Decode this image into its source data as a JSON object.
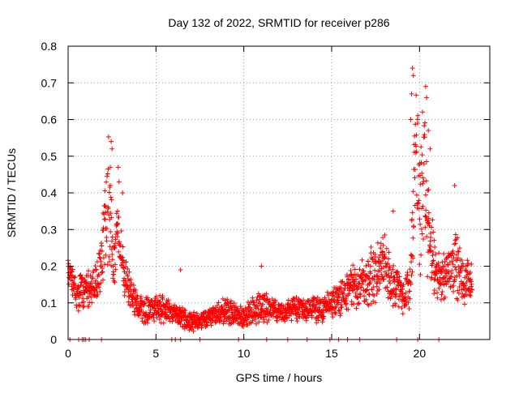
{
  "chart_data": {
    "type": "scatter",
    "title": "Day 132 of 2022, SRMTID for receiver p286",
    "xlabel": "GPS time / hours",
    "ylabel": "SRMTID / TECUs",
    "xlim": [
      0,
      24
    ],
    "ylim": [
      0,
      0.8
    ],
    "x_ticks": [
      0,
      5,
      10,
      15,
      20
    ],
    "x_tick_labels": [
      "0",
      "5",
      "10",
      "15",
      "20"
    ],
    "y_ticks": [
      0,
      0.1,
      0.2,
      0.3,
      0.4,
      0.5,
      0.6,
      0.7,
      0.8
    ],
    "y_tick_labels": [
      "0",
      "0.1",
      "0.2",
      "0.3",
      "0.4",
      "0.5",
      "0.6",
      "0.7",
      "0.8"
    ],
    "grid": true,
    "marker": "plus",
    "marker_color": "#ff0000",
    "envelope": {
      "x": [
        0,
        0.3,
        0.5,
        1.0,
        1.5,
        1.9,
        2.3,
        2.6,
        2.9,
        3.2,
        3.6,
        4.0,
        4.5,
        5.0,
        5.5,
        6.0,
        6.5,
        7.0,
        7.5,
        8.0,
        8.5,
        9.0,
        9.5,
        10.0,
        10.5,
        11.0,
        11.5,
        12.0,
        12.5,
        13.0,
        13.5,
        14.0,
        14.5,
        15.0,
        15.5,
        16.0,
        16.5,
        17.0,
        17.5,
        18.0,
        18.5,
        19.0,
        19.5,
        19.8,
        20.0,
        20.2,
        20.5,
        20.8,
        21.0,
        21.5,
        22.0,
        22.5,
        23.0
      ],
      "y": [
        0.2,
        0.16,
        0.12,
        0.14,
        0.15,
        0.2,
        0.38,
        0.22,
        0.3,
        0.18,
        0.12,
        0.09,
        0.08,
        0.09,
        0.08,
        0.07,
        0.06,
        0.05,
        0.05,
        0.06,
        0.07,
        0.08,
        0.07,
        0.06,
        0.08,
        0.09,
        0.08,
        0.07,
        0.08,
        0.09,
        0.08,
        0.09,
        0.08,
        0.1,
        0.12,
        0.13,
        0.15,
        0.16,
        0.18,
        0.2,
        0.15,
        0.12,
        0.15,
        0.55,
        0.35,
        0.45,
        0.3,
        0.2,
        0.17,
        0.18,
        0.22,
        0.15,
        0.17
      ],
      "spread": [
        0.03,
        0.04,
        0.04,
        0.04,
        0.05,
        0.06,
        0.12,
        0.07,
        0.08,
        0.05,
        0.03,
        0.03,
        0.03,
        0.03,
        0.03,
        0.02,
        0.02,
        0.02,
        0.02,
        0.02,
        0.02,
        0.03,
        0.02,
        0.02,
        0.03,
        0.03,
        0.03,
        0.02,
        0.02,
        0.03,
        0.02,
        0.03,
        0.03,
        0.03,
        0.04,
        0.04,
        0.05,
        0.05,
        0.07,
        0.08,
        0.05,
        0.04,
        0.05,
        0.17,
        0.15,
        0.17,
        0.12,
        0.07,
        0.05,
        0.05,
        0.07,
        0.05,
        0.04
      ]
    },
    "spikes": [
      {
        "x": 2.45,
        "y": 0.54
      },
      {
        "x": 2.5,
        "y": 0.52
      },
      {
        "x": 2.4,
        "y": 0.47
      },
      {
        "x": 2.85,
        "y": 0.47
      },
      {
        "x": 2.9,
        "y": 0.43
      },
      {
        "x": 3.1,
        "y": 0.4
      },
      {
        "x": 19.6,
        "y": 0.74
      },
      {
        "x": 19.65,
        "y": 0.72
      },
      {
        "x": 19.55,
        "y": 0.67
      },
      {
        "x": 20.35,
        "y": 0.69
      },
      {
        "x": 20.4,
        "y": 0.66
      },
      {
        "x": 19.5,
        "y": 0.6
      },
      {
        "x": 20.5,
        "y": 0.57
      },
      {
        "x": 20.6,
        "y": 0.52
      },
      {
        "x": 22.0,
        "y": 0.42
      },
      {
        "x": 6.4,
        "y": 0.19
      },
      {
        "x": 11.0,
        "y": 0.2
      },
      {
        "x": 18.5,
        "y": 0.35
      }
    ],
    "zeros_x": [
      0.1,
      0.6,
      0.8,
      0.9,
      1.0,
      1.2,
      1.9,
      5.9,
      6.1,
      6.4,
      7.5,
      9.7,
      11.3,
      12.5,
      13.6,
      14.9,
      15.4,
      15.9,
      16.6,
      18.7,
      19.9,
      21.1
    ]
  }
}
